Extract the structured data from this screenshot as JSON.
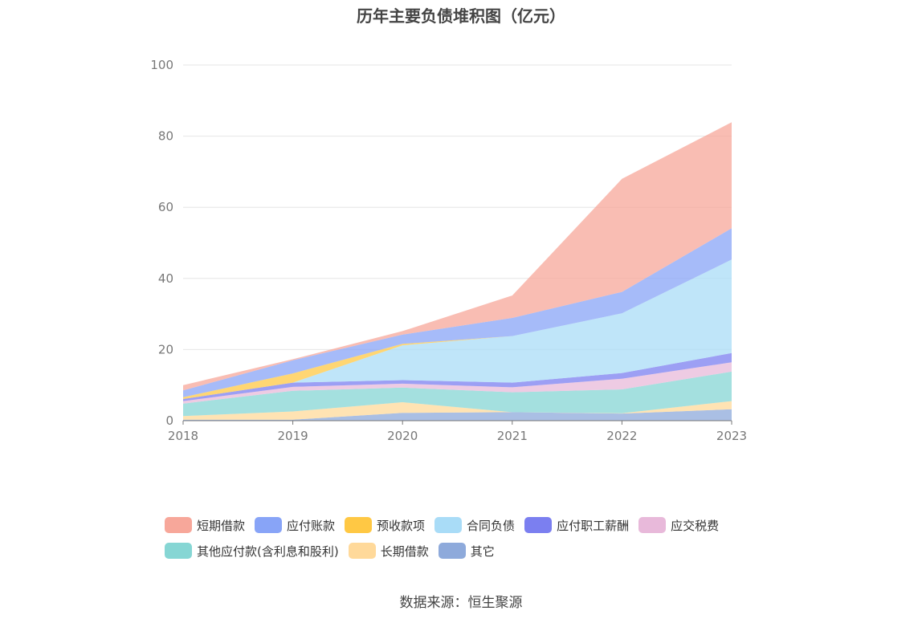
{
  "chart_data": {
    "type": "area",
    "stacked": true,
    "title": "历年主要负债堆积图（亿元）",
    "x": [
      "2018",
      "2019",
      "2020",
      "2021",
      "2022",
      "2023"
    ],
    "ylim": [
      0,
      100
    ],
    "yticks": [
      "0",
      "20",
      "40",
      "60",
      "80",
      "100"
    ],
    "series": [
      {
        "name": "其它",
        "color": "#8eaadb",
        "values": [
          0.3,
          0.3,
          2.2,
          2.4,
          2.0,
          3.2
        ]
      },
      {
        "name": "长期借款",
        "color": "#ffd99a",
        "values": [
          1.0,
          2.3,
          3.0,
          0.0,
          0.1,
          2.3
        ]
      },
      {
        "name": "其他应付款(含利息和股利)",
        "color": "#86d6d4",
        "values": [
          3.5,
          5.8,
          4.1,
          5.6,
          6.7,
          8.3
        ]
      },
      {
        "name": "应交税费",
        "color": "#e8b9da",
        "values": [
          0.7,
          1.1,
          1.1,
          1.4,
          3.0,
          2.6
        ]
      },
      {
        "name": "应付职工薪酬",
        "color": "#7b7ff0",
        "values": [
          0.6,
          1.2,
          1.0,
          1.3,
          1.6,
          2.6
        ]
      },
      {
        "name": "合同负债",
        "color": "#a9dcf7",
        "values": [
          0.0,
          0.0,
          9.8,
          13.1,
          16.8,
          26.3
        ]
      },
      {
        "name": "预收款项",
        "color": "#ffc844",
        "values": [
          0.5,
          2.6,
          0.4,
          0.0,
          0.0,
          0.0
        ]
      },
      {
        "name": "应付账款",
        "color": "#88a4f7",
        "values": [
          1.9,
          3.7,
          2.6,
          5.1,
          6.0,
          8.8
        ]
      },
      {
        "name": "短期借款",
        "color": "#f7a79a",
        "values": [
          1.5,
          0.3,
          1.0,
          6.3,
          31.8,
          29.8
        ]
      }
    ]
  },
  "legend": [
    {
      "name": "短期借款",
      "color": "#f7a79a"
    },
    {
      "name": "应付账款",
      "color": "#88a4f7"
    },
    {
      "name": "预收款项",
      "color": "#ffc844"
    },
    {
      "name": "合同负债",
      "color": "#a9dcf7"
    },
    {
      "name": "应付职工薪酬",
      "color": "#7b7ff0"
    },
    {
      "name": "应交税费",
      "color": "#e8b9da"
    },
    {
      "name": "其他应付款(含利息和股利)",
      "color": "#86d6d4"
    },
    {
      "name": "长期借款",
      "color": "#ffd99a"
    },
    {
      "name": "其它",
      "color": "#8eaadb"
    }
  ],
  "source": "数据来源：恒生聚源"
}
